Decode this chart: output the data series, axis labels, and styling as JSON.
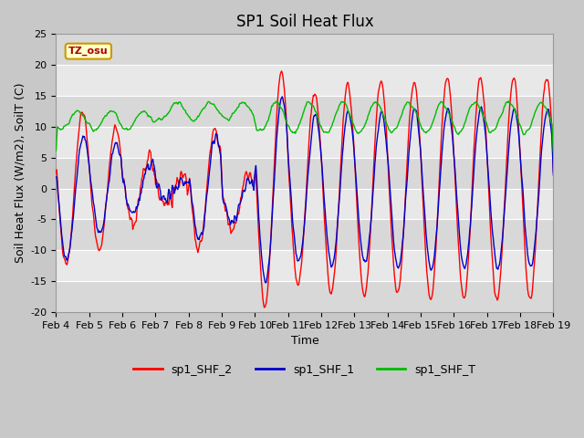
{
  "title": "SP1 Soil Heat Flux",
  "xlabel": "Time",
  "ylabel": "Soil Heat Flux (W/m2), SoilT (C)",
  "ylim": [
    -20,
    25
  ],
  "x_tick_labels": [
    "Feb 4",
    "Feb 5",
    "Feb 6",
    "Feb 7",
    "Feb 8",
    "Feb 9",
    "Feb 10",
    "Feb 11",
    "Feb 12",
    "Feb 13",
    "Feb 14",
    "Feb 15",
    "Feb 16",
    "Feb 17",
    "Feb 18",
    "Feb 19"
  ],
  "color_shf2": "#ff0000",
  "color_shf1": "#0000cc",
  "color_shft": "#00bb00",
  "fig_bg": "#c8c8c8",
  "plot_bg": "#e0e0e0",
  "stripe_color": "#cccccc",
  "legend_label1": "sp1_SHF_2",
  "legend_label2": "sp1_SHF_1",
  "legend_label3": "sp1_SHF_T",
  "tz_label": "TZ_osu",
  "title_fontsize": 12,
  "axis_fontsize": 9,
  "tick_fontsize": 8,
  "legend_fontsize": 9,
  "linewidth": 1.0
}
